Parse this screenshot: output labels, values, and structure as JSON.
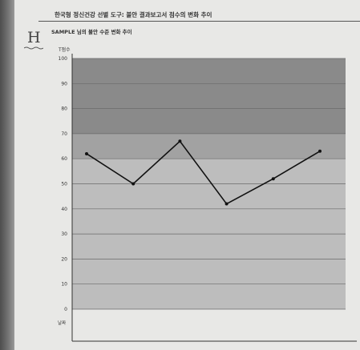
{
  "page": {
    "title": "한국형 정신건강 선별 도구: 불안 결과보고서 점수의 변화 추이",
    "section_letter": "H"
  },
  "chart_data": {
    "type": "line",
    "title": "SAMPLE 님의 불안 수준 변화 추이",
    "ylabel": "T점수",
    "xlabel": "날짜",
    "ylim": [
      0,
      100
    ],
    "yticks": [
      0,
      10,
      20,
      30,
      40,
      50,
      60,
      70,
      80,
      90,
      100
    ],
    "grid": true,
    "bands": [
      {
        "from": 70,
        "to": 100,
        "color": "#8a8a8a"
      },
      {
        "from": 60,
        "to": 70,
        "color": "#a2a2a2"
      },
      {
        "from": 0,
        "to": 60,
        "color": "#bdbdbd"
      }
    ],
    "series": [
      {
        "values": [
          62,
          50,
          67,
          42,
          52,
          63
        ],
        "color": "#111111"
      }
    ]
  }
}
